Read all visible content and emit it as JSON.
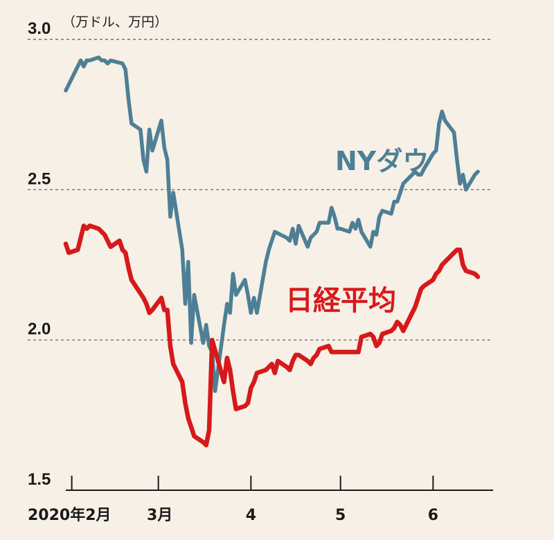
{
  "chart_data": {
    "type": "line",
    "y_unit": "（万ドル、万円）",
    "ylim": [
      1.5,
      3.0
    ],
    "y_ticks": [
      "3.0",
      "2.5",
      "2.0",
      "1.5"
    ],
    "y_tick_values": [
      3.0,
      2.5,
      2.0,
      1.5
    ],
    "gridlines": "dashed at 2.0, 2.5, 3.0",
    "x_ticks": [
      "2020年2月",
      "3月",
      "4",
      "5",
      "6"
    ],
    "xlim": [
      "2020-01-30",
      "2020-06-19"
    ],
    "x_tick_dates": [
      "2020-02-01",
      "2020-03-01",
      "2020-04-01",
      "2020-05-01",
      "2020-06-01"
    ],
    "series": [
      {
        "name": "NYダウ",
        "color": "#4e7f96",
        "x": [
          "2020-01-30",
          "2020-01-31",
          "2020-02-03",
          "2020-02-04",
          "2020-02-05",
          "2020-02-06",
          "2020-02-07",
          "2020-02-10",
          "2020-02-11",
          "2020-02-12",
          "2020-02-13",
          "2020-02-14",
          "2020-02-18",
          "2020-02-19",
          "2020-02-20",
          "2020-02-21",
          "2020-02-24",
          "2020-02-25",
          "2020-02-26",
          "2020-02-27",
          "2020-02-28",
          "2020-03-02",
          "2020-03-03",
          "2020-03-04",
          "2020-03-05",
          "2020-03-06",
          "2020-03-09",
          "2020-03-10",
          "2020-03-11",
          "2020-03-12",
          "2020-03-13",
          "2020-03-16",
          "2020-03-17",
          "2020-03-18",
          "2020-03-19",
          "2020-03-20",
          "2020-03-23",
          "2020-03-24",
          "2020-03-25",
          "2020-03-26",
          "2020-03-27",
          "2020-03-30",
          "2020-03-31",
          "2020-04-01",
          "2020-04-02",
          "2020-04-03",
          "2020-04-06",
          "2020-04-07",
          "2020-04-08",
          "2020-04-09",
          "2020-04-13",
          "2020-04-14",
          "2020-04-15",
          "2020-04-16",
          "2020-04-17",
          "2020-04-20",
          "2020-04-21",
          "2020-04-22",
          "2020-04-23",
          "2020-04-24",
          "2020-04-27",
          "2020-04-28",
          "2020-04-29",
          "2020-04-30",
          "2020-05-01",
          "2020-05-04",
          "2020-05-05",
          "2020-05-06",
          "2020-05-07",
          "2020-05-08",
          "2020-05-11",
          "2020-05-12",
          "2020-05-13",
          "2020-05-14",
          "2020-05-15",
          "2020-05-18",
          "2020-05-19",
          "2020-05-20",
          "2020-05-21",
          "2020-05-22",
          "2020-05-26",
          "2020-05-27",
          "2020-05-28",
          "2020-05-29",
          "2020-06-01",
          "2020-06-02",
          "2020-06-03",
          "2020-06-04",
          "2020-06-05",
          "2020-06-08",
          "2020-06-09",
          "2020-06-10",
          "2020-06-11",
          "2020-06-12",
          "2020-06-15",
          "2020-06-16"
        ],
        "values": [
          2.83,
          2.85,
          2.91,
          2.93,
          2.91,
          2.93,
          2.93,
          2.94,
          2.93,
          2.93,
          2.92,
          2.93,
          2.92,
          2.9,
          2.8,
          2.72,
          2.7,
          2.6,
          2.56,
          2.7,
          2.63,
          2.73,
          2.64,
          2.6,
          2.41,
          2.49,
          2.3,
          2.12,
          2.26,
          1.99,
          2.15,
          1.99,
          2.05,
          1.98,
          1.96,
          1.83,
          2.05,
          2.12,
          2.09,
          2.22,
          2.15,
          2.2,
          2.15,
          2.09,
          2.14,
          2.09,
          2.26,
          2.3,
          2.33,
          2.36,
          2.34,
          2.33,
          2.37,
          2.32,
          2.38,
          2.31,
          2.34,
          2.35,
          2.36,
          2.39,
          2.39,
          2.44,
          2.41,
          2.37,
          2.37,
          2.36,
          2.39,
          2.37,
          2.4,
          2.36,
          2.31,
          2.36,
          2.35,
          2.41,
          2.43,
          2.42,
          2.46,
          2.46,
          2.49,
          2.52,
          2.56,
          2.55,
          2.55,
          2.57,
          2.62,
          2.63,
          2.72,
          2.76,
          2.73,
          2.69,
          2.6,
          2.52,
          2.55,
          2.5,
          2.55,
          2.56
        ]
      },
      {
        "name": "日経平均",
        "color": "#d6191b",
        "x": [
          "2020-01-30",
          "2020-01-31",
          "2020-02-03",
          "2020-02-04",
          "2020-02-05",
          "2020-02-06",
          "2020-02-07",
          "2020-02-10",
          "2020-02-12",
          "2020-02-13",
          "2020-02-14",
          "2020-02-17",
          "2020-02-18",
          "2020-02-19",
          "2020-02-20",
          "2020-02-21",
          "2020-02-25",
          "2020-02-26",
          "2020-02-27",
          "2020-02-28",
          "2020-03-02",
          "2020-03-03",
          "2020-03-04",
          "2020-03-05",
          "2020-03-06",
          "2020-03-09",
          "2020-03-10",
          "2020-03-11",
          "2020-03-12",
          "2020-03-13",
          "2020-03-16",
          "2020-03-17",
          "2020-03-18",
          "2020-03-19",
          "2020-03-23",
          "2020-03-24",
          "2020-03-25",
          "2020-03-26",
          "2020-03-27",
          "2020-03-30",
          "2020-03-31",
          "2020-04-01",
          "2020-04-02",
          "2020-04-03",
          "2020-04-06",
          "2020-04-07",
          "2020-04-08",
          "2020-04-09",
          "2020-04-10",
          "2020-04-13",
          "2020-04-14",
          "2020-04-15",
          "2020-04-16",
          "2020-04-17",
          "2020-04-20",
          "2020-04-21",
          "2020-04-22",
          "2020-04-23",
          "2020-04-24",
          "2020-04-27",
          "2020-04-28",
          "2020-04-30",
          "2020-05-01",
          "2020-05-07",
          "2020-05-08",
          "2020-05-11",
          "2020-05-12",
          "2020-05-13",
          "2020-05-14",
          "2020-05-15",
          "2020-05-18",
          "2020-05-19",
          "2020-05-20",
          "2020-05-21",
          "2020-05-22",
          "2020-05-25",
          "2020-05-26",
          "2020-05-27",
          "2020-05-28",
          "2020-05-29",
          "2020-06-01",
          "2020-06-02",
          "2020-06-03",
          "2020-06-04",
          "2020-06-05",
          "2020-06-08",
          "2020-06-09",
          "2020-06-10",
          "2020-06-11",
          "2020-06-12",
          "2020-06-15",
          "2020-06-16"
        ],
        "values": [
          2.32,
          2.29,
          2.3,
          2.34,
          2.38,
          2.37,
          2.38,
          2.37,
          2.35,
          2.33,
          2.31,
          2.33,
          2.3,
          2.29,
          2.24,
          2.2,
          2.14,
          2.12,
          2.09,
          2.1,
          2.14,
          2.1,
          2.1,
          1.98,
          1.92,
          1.86,
          1.79,
          1.74,
          1.71,
          1.68,
          1.66,
          1.65,
          1.7,
          2.0,
          1.86,
          1.94,
          1.9,
          1.83,
          1.77,
          1.78,
          1.79,
          1.84,
          1.86,
          1.89,
          1.9,
          1.91,
          1.92,
          1.89,
          1.93,
          1.91,
          1.9,
          1.93,
          1.95,
          1.95,
          1.93,
          1.92,
          1.94,
          1.95,
          1.97,
          1.98,
          1.96,
          1.96,
          1.96,
          1.96,
          2.01,
          2.02,
          2.01,
          1.98,
          1.99,
          2.02,
          2.03,
          2.04,
          2.06,
          2.05,
          2.03,
          2.09,
          2.11,
          2.14,
          2.17,
          2.18,
          2.2,
          2.22,
          2.23,
          2.25,
          2.26,
          2.29,
          2.3,
          2.3,
          2.25,
          2.23,
          2.22,
          2.21
        ]
      }
    ],
    "grid_color": "#555555"
  }
}
